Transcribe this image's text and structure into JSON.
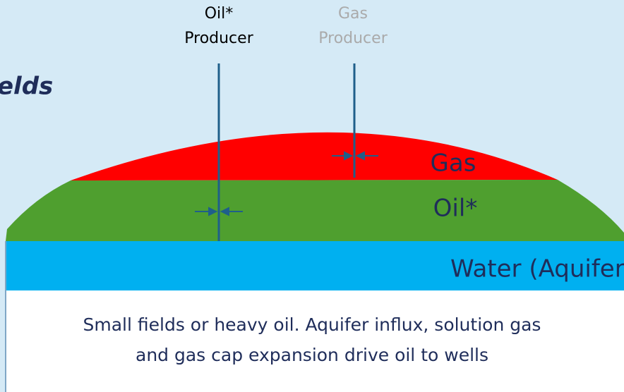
{
  "header": {
    "title": "elds"
  },
  "wells": [
    {
      "line1": "Oil*",
      "line2": "Producer"
    },
    {
      "line1": "Gas",
      "line2": "Producer"
    }
  ],
  "zones": {
    "gas": "Gas",
    "oil": "Oil*",
    "water": "Water (Aquifer)"
  },
  "caption": {
    "line1": "Small fields or heavy oil.  Aquifer influx, solution gas",
    "line2": "and gas cap expansion drive oil to wells"
  }
}
